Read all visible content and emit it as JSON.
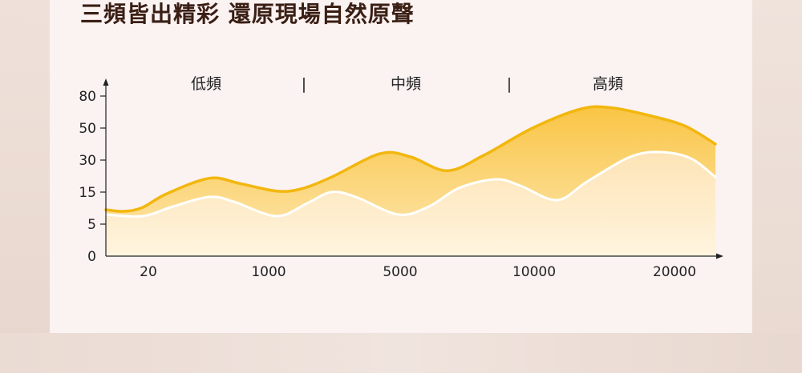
{
  "headline": "三頻皆出精彩 還原現場自然原聲",
  "colors": {
    "upper_line": "#f2b70e",
    "upper_fill": "#fccf60",
    "lower_line": "#ffffff",
    "lower_fill": "#fdebc3",
    "axis": "#222222"
  },
  "chart_data": {
    "type": "area",
    "title": "",
    "xlabel": "",
    "ylabel": "",
    "x_ticks": [
      "20",
      "1000",
      "5000",
      "10000",
      "20000"
    ],
    "y_ticks": [
      "0",
      "5",
      "15",
      "30",
      "50",
      "80"
    ],
    "bands": [
      "低頻",
      "中頻",
      "高頻"
    ],
    "band_separator": "|",
    "grid": false,
    "legend": "none",
    "series": [
      {
        "role": "upper",
        "values": [
          [
            0.0,
            9.5
          ],
          [
            0.03,
            9.0
          ],
          [
            0.06,
            10.2
          ],
          [
            0.1,
            14.5
          ],
          [
            0.17,
            21.5
          ],
          [
            0.22,
            19.0
          ],
          [
            0.28,
            15.5
          ],
          [
            0.32,
            16.5
          ],
          [
            0.37,
            22.0
          ],
          [
            0.45,
            34.0
          ],
          [
            0.5,
            32.0
          ],
          [
            0.56,
            25.0
          ],
          [
            0.62,
            33.0
          ],
          [
            0.7,
            50.0
          ],
          [
            0.78,
            68.0
          ],
          [
            0.83,
            69.0
          ],
          [
            0.89,
            62.0
          ],
          [
            0.95,
            52.0
          ],
          [
            1.0,
            40.0
          ]
        ]
      },
      {
        "role": "lower",
        "values": [
          [
            0.0,
            8.0
          ],
          [
            0.06,
            7.5
          ],
          [
            0.11,
            10.5
          ],
          [
            0.17,
            13.5
          ],
          [
            0.21,
            12.0
          ],
          [
            0.28,
            7.5
          ],
          [
            0.33,
            11.5
          ],
          [
            0.37,
            15.0
          ],
          [
            0.41,
            13.5
          ],
          [
            0.48,
            8.0
          ],
          [
            0.53,
            10.5
          ],
          [
            0.58,
            17.0
          ],
          [
            0.64,
            21.0
          ],
          [
            0.68,
            18.0
          ],
          [
            0.74,
            12.5
          ],
          [
            0.79,
            20.0
          ],
          [
            0.86,
            32.0
          ],
          [
            0.91,
            35.0
          ],
          [
            0.96,
            31.0
          ],
          [
            1.0,
            22.0
          ]
        ]
      }
    ]
  }
}
